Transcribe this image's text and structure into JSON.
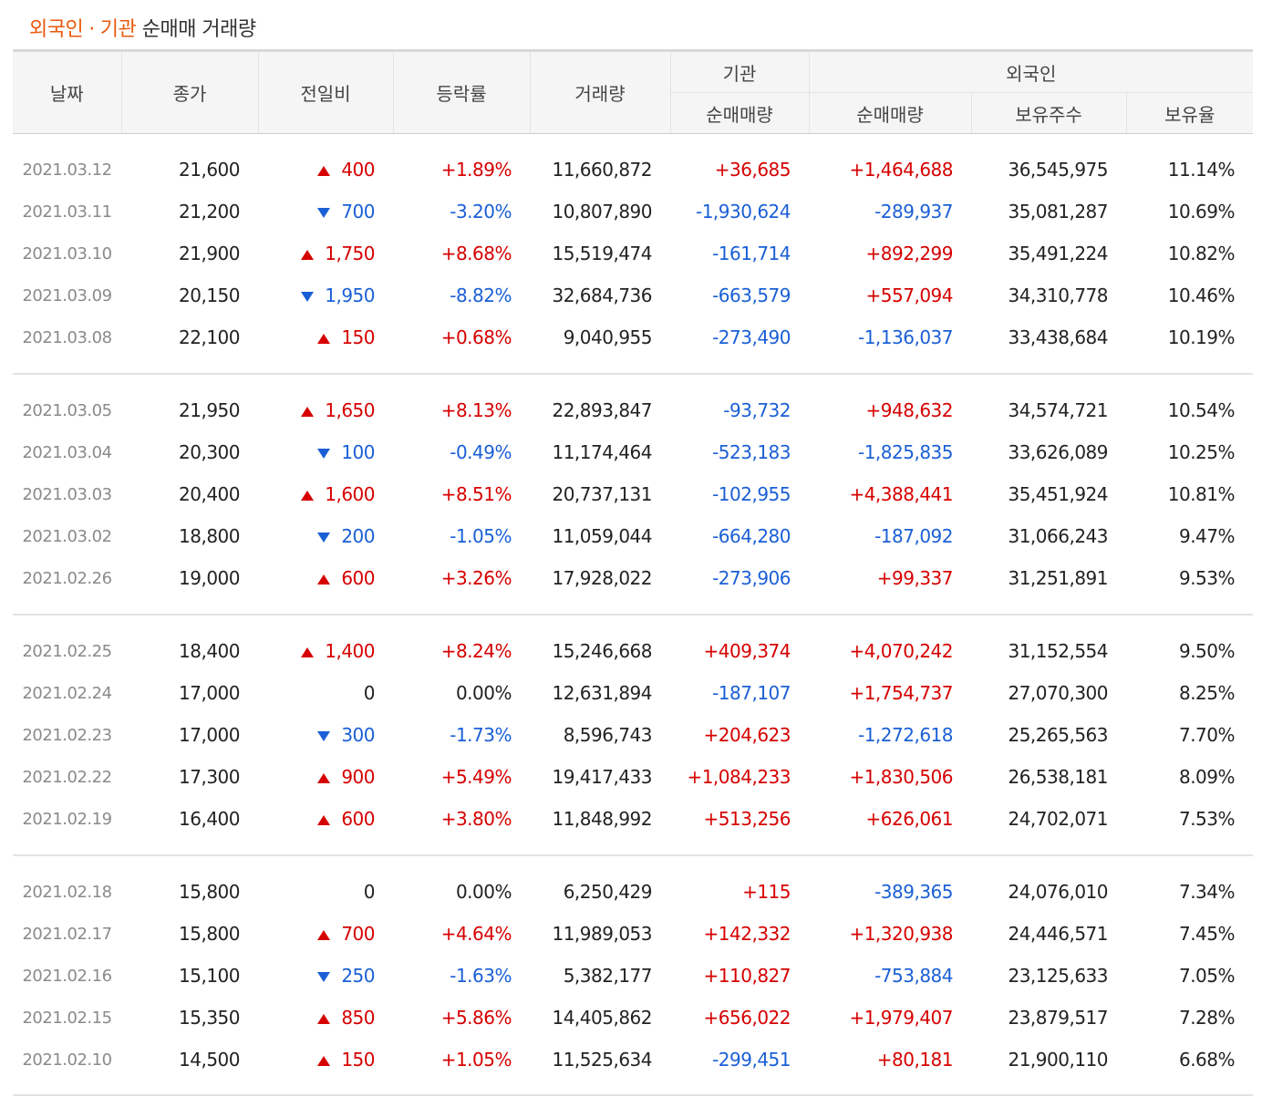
{
  "title": {
    "part1": "외국인",
    "sep": "·",
    "part2": "기관",
    "rest": "순매매 거래량"
  },
  "header": {
    "date": "날짜",
    "close": "종가",
    "change": "전일비",
    "rate": "등락률",
    "volume": "거래량",
    "inst_group": "기관",
    "foreign_group": "외국인",
    "inst_net": "순매매량",
    "foreign_net": "순매매량",
    "holdings": "보유주수",
    "ratio": "보유율"
  },
  "groups": [
    [
      {
        "date": "2021.03.12",
        "close": "21,600",
        "dir": "up",
        "change": "400",
        "rate": "+1.89%",
        "volume": "11,660,872",
        "inst": "+36,685",
        "foreign": "+1,464,688",
        "holdings": "36,545,975",
        "ratio": "11.14%"
      },
      {
        "date": "2021.03.11",
        "close": "21,200",
        "dir": "down",
        "change": "700",
        "rate": "-3.20%",
        "volume": "10,807,890",
        "inst": "-1,930,624",
        "foreign": "-289,937",
        "holdings": "35,081,287",
        "ratio": "10.69%"
      },
      {
        "date": "2021.03.10",
        "close": "21,900",
        "dir": "up",
        "change": "1,750",
        "rate": "+8.68%",
        "volume": "15,519,474",
        "inst": "-161,714",
        "foreign": "+892,299",
        "holdings": "35,491,224",
        "ratio": "10.82%"
      },
      {
        "date": "2021.03.09",
        "close": "20,150",
        "dir": "down",
        "change": "1,950",
        "rate": "-8.82%",
        "volume": "32,684,736",
        "inst": "-663,579",
        "foreign": "+557,094",
        "holdings": "34,310,778",
        "ratio": "10.46%"
      },
      {
        "date": "2021.03.08",
        "close": "22,100",
        "dir": "up",
        "change": "150",
        "rate": "+0.68%",
        "volume": "9,040,955",
        "inst": "-273,490",
        "foreign": "-1,136,037",
        "holdings": "33,438,684",
        "ratio": "10.19%"
      }
    ],
    [
      {
        "date": "2021.03.05",
        "close": "21,950",
        "dir": "up",
        "change": "1,650",
        "rate": "+8.13%",
        "volume": "22,893,847",
        "inst": "-93,732",
        "foreign": "+948,632",
        "holdings": "34,574,721",
        "ratio": "10.54%"
      },
      {
        "date": "2021.03.04",
        "close": "20,300",
        "dir": "down",
        "change": "100",
        "rate": "-0.49%",
        "volume": "11,174,464",
        "inst": "-523,183",
        "foreign": "-1,825,835",
        "holdings": "33,626,089",
        "ratio": "10.25%"
      },
      {
        "date": "2021.03.03",
        "close": "20,400",
        "dir": "up",
        "change": "1,600",
        "rate": "+8.51%",
        "volume": "20,737,131",
        "inst": "-102,955",
        "foreign": "+4,388,441",
        "holdings": "35,451,924",
        "ratio": "10.81%"
      },
      {
        "date": "2021.03.02",
        "close": "18,800",
        "dir": "down",
        "change": "200",
        "rate": "-1.05%",
        "volume": "11,059,044",
        "inst": "-664,280",
        "foreign": "-187,092",
        "holdings": "31,066,243",
        "ratio": "9.47%"
      },
      {
        "date": "2021.02.26",
        "close": "19,000",
        "dir": "up",
        "change": "600",
        "rate": "+3.26%",
        "volume": "17,928,022",
        "inst": "-273,906",
        "foreign": "+99,337",
        "holdings": "31,251,891",
        "ratio": "9.53%"
      }
    ],
    [
      {
        "date": "2021.02.25",
        "close": "18,400",
        "dir": "up",
        "change": "1,400",
        "rate": "+8.24%",
        "volume": "15,246,668",
        "inst": "+409,374",
        "foreign": "+4,070,242",
        "holdings": "31,152,554",
        "ratio": "9.50%"
      },
      {
        "date": "2021.02.24",
        "close": "17,000",
        "dir": "flat",
        "change": "0",
        "rate": "0.00%",
        "volume": "12,631,894",
        "inst": "-187,107",
        "foreign": "+1,754,737",
        "holdings": "27,070,300",
        "ratio": "8.25%"
      },
      {
        "date": "2021.02.23",
        "close": "17,000",
        "dir": "down",
        "change": "300",
        "rate": "-1.73%",
        "volume": "8,596,743",
        "inst": "+204,623",
        "foreign": "-1,272,618",
        "holdings": "25,265,563",
        "ratio": "7.70%"
      },
      {
        "date": "2021.02.22",
        "close": "17,300",
        "dir": "up",
        "change": "900",
        "rate": "+5.49%",
        "volume": "19,417,433",
        "inst": "+1,084,233",
        "foreign": "+1,830,506",
        "holdings": "26,538,181",
        "ratio": "8.09%"
      },
      {
        "date": "2021.02.19",
        "close": "16,400",
        "dir": "up",
        "change": "600",
        "rate": "+3.80%",
        "volume": "11,848,992",
        "inst": "+513,256",
        "foreign": "+626,061",
        "holdings": "24,702,071",
        "ratio": "7.53%"
      }
    ],
    [
      {
        "date": "2021.02.18",
        "close": "15,800",
        "dir": "flat",
        "change": "0",
        "rate": "0.00%",
        "volume": "6,250,429",
        "inst": "+115",
        "foreign": "-389,365",
        "holdings": "24,076,010",
        "ratio": "7.34%"
      },
      {
        "date": "2021.02.17",
        "close": "15,800",
        "dir": "up",
        "change": "700",
        "rate": "+4.64%",
        "volume": "11,989,053",
        "inst": "+142,332",
        "foreign": "+1,320,938",
        "holdings": "24,446,571",
        "ratio": "7.45%"
      },
      {
        "date": "2021.02.16",
        "close": "15,100",
        "dir": "down",
        "change": "250",
        "rate": "-1.63%",
        "volume": "5,382,177",
        "inst": "+110,827",
        "foreign": "-753,884",
        "holdings": "23,125,633",
        "ratio": "7.05%"
      },
      {
        "date": "2021.02.15",
        "close": "15,350",
        "dir": "up",
        "change": "850",
        "rate": "+5.86%",
        "volume": "14,405,862",
        "inst": "+656,022",
        "foreign": "+1,979,407",
        "holdings": "23,879,517",
        "ratio": "7.28%"
      },
      {
        "date": "2021.02.10",
        "close": "14,500",
        "dir": "up",
        "change": "150",
        "rate": "+1.05%",
        "volume": "11,525,634",
        "inst": "-299,451",
        "foreign": "+80,181",
        "holdings": "21,900,110",
        "ratio": "6.68%"
      }
    ]
  ]
}
